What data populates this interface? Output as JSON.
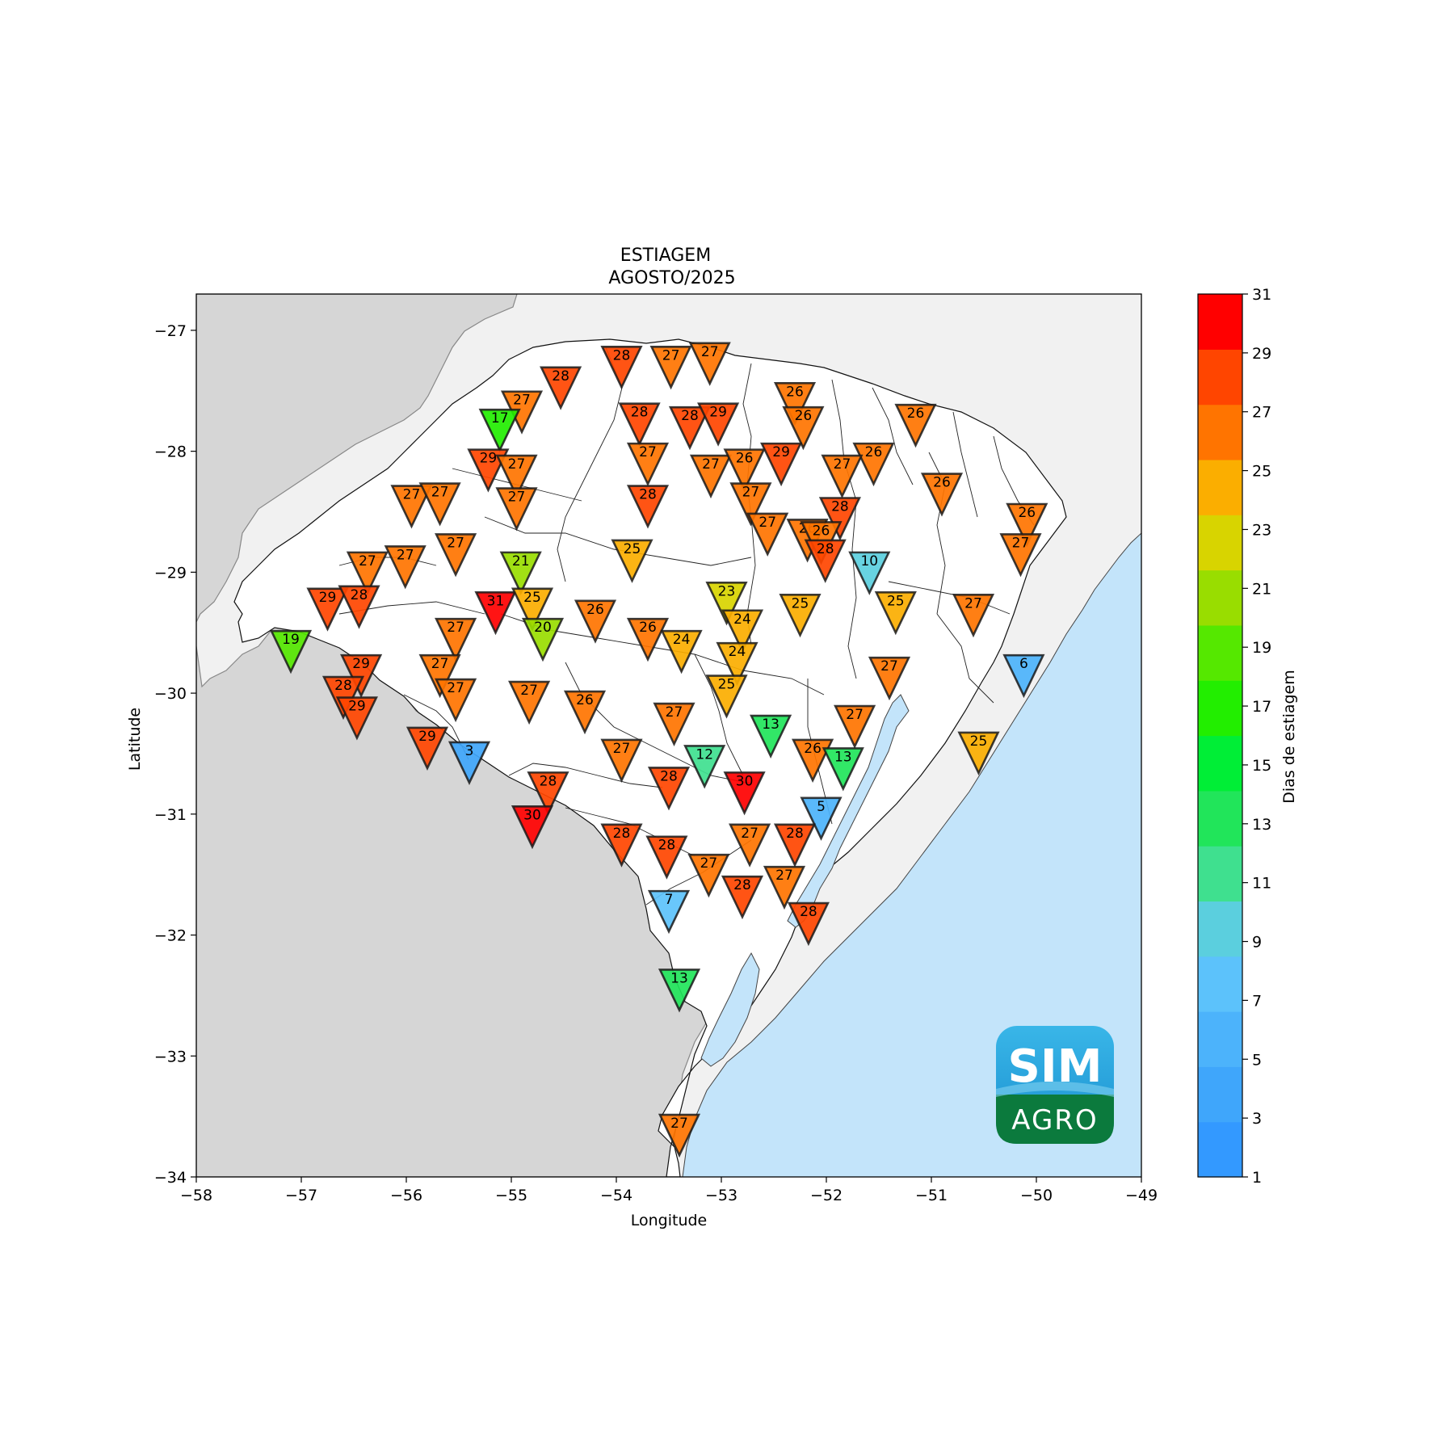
{
  "title": "ESTIAGEM",
  "subtitle": "AGOSTO/2025",
  "xlabel": "Longitude",
  "ylabel": "Latitude",
  "colorbar_label": "Dias de estiagem",
  "logo": {
    "top": "SIM",
    "bottom": "AGRO"
  },
  "colors": {
    "land_outside": "#d6d6d6",
    "land_other": "#f1f1f1",
    "ocean": "#c3e4fa",
    "state_fill": "#ffffff"
  },
  "colorbar": {
    "ticks": [
      1,
      3,
      5,
      7,
      9,
      11,
      13,
      15,
      17,
      19,
      21,
      23,
      25,
      27,
      29,
      31
    ],
    "colors": [
      "#3399ff",
      "#3fa6fb",
      "#4cb3fb",
      "#5cc2fb",
      "#5bcfde",
      "#3fe08f",
      "#21e55a",
      "#00ee36",
      "#22ee00",
      "#55e800",
      "#99dd00",
      "#d8d400",
      "#fbae00",
      "#ff7400",
      "#ff4500",
      "#ff0000"
    ]
  },
  "chart_data": {
    "type": "scatter",
    "title": "ESTIAGEM\nAGOSTO/2025",
    "xlabel": "Longitude",
    "ylabel": "Latitude",
    "xlim": [
      -58,
      -49
    ],
    "ylim": [
      -34,
      -26.7
    ],
    "xticks": [
      -58,
      -57,
      -56,
      -55,
      -54,
      -53,
      -52,
      -51,
      -50,
      -49
    ],
    "yticks": [
      -34,
      -33,
      -32,
      -31,
      -30,
      -29,
      -28,
      -27
    ],
    "marker": "inverted-triangle",
    "color_scale": {
      "label": "Dias de estiagem",
      "min": 1,
      "max": 31
    },
    "stations": [
      {
        "lon": -53.95,
        "lat": -27.25,
        "v": 28
      },
      {
        "lon": -53.48,
        "lat": -27.25,
        "v": 27
      },
      {
        "lon": -53.11,
        "lat": -27.22,
        "v": 27
      },
      {
        "lon": -54.53,
        "lat": -27.42,
        "v": 28
      },
      {
        "lon": -54.9,
        "lat": -27.62,
        "v": 27
      },
      {
        "lon": -55.11,
        "lat": -27.77,
        "v": 17
      },
      {
        "lon": -53.78,
        "lat": -27.72,
        "v": 28
      },
      {
        "lon": -53.3,
        "lat": -27.75,
        "v": 28
      },
      {
        "lon": -53.03,
        "lat": -27.72,
        "v": 29
      },
      {
        "lon": -52.3,
        "lat": -27.55,
        "v": 26
      },
      {
        "lon": -52.22,
        "lat": -27.75,
        "v": 26
      },
      {
        "lon": -51.15,
        "lat": -27.73,
        "v": 26
      },
      {
        "lon": -55.22,
        "lat": -28.1,
        "v": 29
      },
      {
        "lon": -54.95,
        "lat": -28.15,
        "v": 27
      },
      {
        "lon": -53.7,
        "lat": -28.05,
        "v": 27
      },
      {
        "lon": -53.1,
        "lat": -28.15,
        "v": 27
      },
      {
        "lon": -52.78,
        "lat": -28.1,
        "v": 26
      },
      {
        "lon": -52.43,
        "lat": -28.05,
        "v": 29
      },
      {
        "lon": -51.55,
        "lat": -28.05,
        "v": 26
      },
      {
        "lon": -51.85,
        "lat": -28.15,
        "v": 27
      },
      {
        "lon": -50.9,
        "lat": -28.3,
        "v": 26
      },
      {
        "lon": -55.95,
        "lat": -28.4,
        "v": 27
      },
      {
        "lon": -55.68,
        "lat": -28.38,
        "v": 27
      },
      {
        "lon": -54.95,
        "lat": -28.42,
        "v": 27
      },
      {
        "lon": -53.7,
        "lat": -28.4,
        "v": 28
      },
      {
        "lon": -52.72,
        "lat": -28.38,
        "v": 27
      },
      {
        "lon": -51.87,
        "lat": -28.5,
        "v": 28
      },
      {
        "lon": -50.09,
        "lat": -28.55,
        "v": 26
      },
      {
        "lon": -52.56,
        "lat": -28.63,
        "v": 27
      },
      {
        "lon": -52.18,
        "lat": -28.68,
        "v": 26
      },
      {
        "lon": -52.05,
        "lat": -28.7,
        "v": 26
      },
      {
        "lon": -52.01,
        "lat": -28.85,
        "v": 28
      },
      {
        "lon": -55.53,
        "lat": -28.8,
        "v": 27
      },
      {
        "lon": -56.01,
        "lat": -28.9,
        "v": 27
      },
      {
        "lon": -56.37,
        "lat": -28.95,
        "v": 27
      },
      {
        "lon": -53.85,
        "lat": -28.85,
        "v": 25
      },
      {
        "lon": -50.15,
        "lat": -28.8,
        "v": 27
      },
      {
        "lon": -54.91,
        "lat": -28.95,
        "v": 21
      },
      {
        "lon": -51.59,
        "lat": -28.95,
        "v": 10
      },
      {
        "lon": -56.75,
        "lat": -29.25,
        "v": 29
      },
      {
        "lon": -56.45,
        "lat": -29.23,
        "v": 28
      },
      {
        "lon": -55.15,
        "lat": -29.28,
        "v": 31
      },
      {
        "lon": -54.8,
        "lat": -29.25,
        "v": 25
      },
      {
        "lon": -52.95,
        "lat": -29.2,
        "v": 23
      },
      {
        "lon": -52.25,
        "lat": -29.3,
        "v": 25
      },
      {
        "lon": -51.34,
        "lat": -29.28,
        "v": 25
      },
      {
        "lon": -50.6,
        "lat": -29.3,
        "v": 27
      },
      {
        "lon": -54.2,
        "lat": -29.35,
        "v": 26
      },
      {
        "lon": -52.8,
        "lat": -29.43,
        "v": 24
      },
      {
        "lon": -57.1,
        "lat": -29.6,
        "v": 19
      },
      {
        "lon": -55.53,
        "lat": -29.5,
        "v": 27
      },
      {
        "lon": -54.7,
        "lat": -29.5,
        "v": 20
      },
      {
        "lon": -53.7,
        "lat": -29.5,
        "v": 26
      },
      {
        "lon": -53.38,
        "lat": -29.6,
        "v": 24
      },
      {
        "lon": -52.85,
        "lat": -29.7,
        "v": 24
      },
      {
        "lon": -50.12,
        "lat": -29.8,
        "v": 6
      },
      {
        "lon": -56.43,
        "lat": -29.8,
        "v": 29
      },
      {
        "lon": -55.68,
        "lat": -29.8,
        "v": 27
      },
      {
        "lon": -51.4,
        "lat": -29.82,
        "v": 27
      },
      {
        "lon": -56.6,
        "lat": -29.98,
        "v": 28
      },
      {
        "lon": -55.53,
        "lat": -30.0,
        "v": 27
      },
      {
        "lon": -54.83,
        "lat": -30.02,
        "v": 27
      },
      {
        "lon": -52.95,
        "lat": -29.97,
        "v": 25
      },
      {
        "lon": -56.47,
        "lat": -30.15,
        "v": 29
      },
      {
        "lon": -54.3,
        "lat": -30.1,
        "v": 26
      },
      {
        "lon": -53.45,
        "lat": -30.2,
        "v": 27
      },
      {
        "lon": -51.73,
        "lat": -30.22,
        "v": 27
      },
      {
        "lon": -52.53,
        "lat": -30.3,
        "v": 13
      },
      {
        "lon": -55.8,
        "lat": -30.4,
        "v": 29
      },
      {
        "lon": -55.4,
        "lat": -30.52,
        "v": 3
      },
      {
        "lon": -53.95,
        "lat": -30.5,
        "v": 27
      },
      {
        "lon": -53.16,
        "lat": -30.55,
        "v": 12
      },
      {
        "lon": -52.13,
        "lat": -30.5,
        "v": 26
      },
      {
        "lon": -51.84,
        "lat": -30.57,
        "v": 13
      },
      {
        "lon": -50.55,
        "lat": -30.44,
        "v": 25
      },
      {
        "lon": -54.65,
        "lat": -30.77,
        "v": 28
      },
      {
        "lon": -53.5,
        "lat": -30.73,
        "v": 28
      },
      {
        "lon": -52.78,
        "lat": -30.77,
        "v": 30
      },
      {
        "lon": -54.8,
        "lat": -31.05,
        "v": 30
      },
      {
        "lon": -52.05,
        "lat": -30.98,
        "v": 5
      },
      {
        "lon": -53.95,
        "lat": -31.2,
        "v": 28
      },
      {
        "lon": -52.73,
        "lat": -31.2,
        "v": 27
      },
      {
        "lon": -52.3,
        "lat": -31.2,
        "v": 28
      },
      {
        "lon": -53.52,
        "lat": -31.3,
        "v": 28
      },
      {
        "lon": -53.12,
        "lat": -31.45,
        "v": 27
      },
      {
        "lon": -52.4,
        "lat": -31.55,
        "v": 27
      },
      {
        "lon": -52.8,
        "lat": -31.63,
        "v": 28
      },
      {
        "lon": -53.5,
        "lat": -31.75,
        "v": 7
      },
      {
        "lon": -52.17,
        "lat": -31.85,
        "v": 28
      },
      {
        "lon": -53.4,
        "lat": -32.4,
        "v": 13
      },
      {
        "lon": -53.4,
        "lat": -33.6,
        "v": 27
      }
    ]
  }
}
